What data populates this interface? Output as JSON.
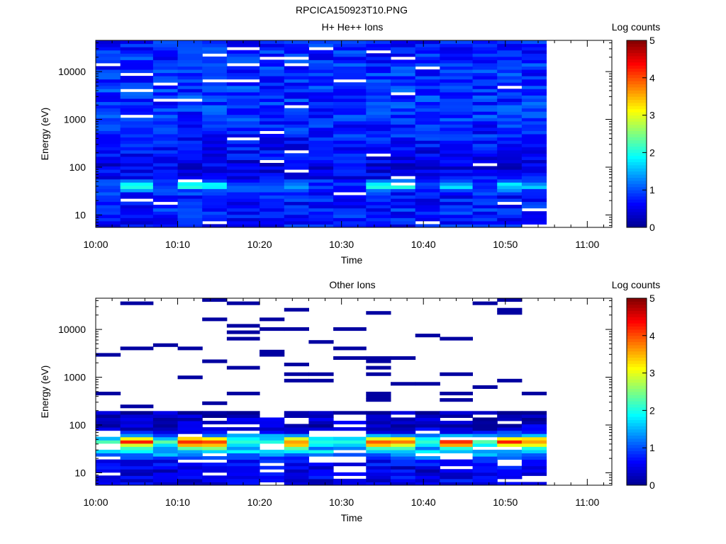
{
  "title": "RPCICA150923T10.PNG",
  "colors": {
    "jet": [
      "#00008f",
      "#0000ff",
      "#0080ff",
      "#00ffff",
      "#80ff80",
      "#ffff00",
      "#ff8000",
      "#ff0000",
      "#800000"
    ],
    "empty": "#ffffff",
    "frame": "#000000"
  },
  "chart_data": [
    {
      "type": "heatmap",
      "title": "H+ He++ Ions",
      "xlabel": "Time",
      "ylabel": "Energy (eV)",
      "x_ticks": [
        "10:00",
        "10:10",
        "10:20",
        "10:30",
        "10:40",
        "10:50",
        "11:00"
      ],
      "x_range": [
        "10:00",
        "11:03"
      ],
      "y_scale": "log",
      "y_ticks": [
        "10",
        "100",
        "1000",
        "10000"
      ],
      "y_range": [
        5.5,
        45000
      ],
      "time_bins": [
        "10:00",
        "10:03",
        "10:07",
        "10:10",
        "10:13",
        "10:16",
        "10:20",
        "10:23",
        "10:26",
        "10:29",
        "10:33",
        "10:36",
        "10:39",
        "10:42",
        "10:46",
        "10:49",
        "10:52"
      ],
      "data_end": "10:55",
      "colorbar": {
        "label": "Log counts",
        "min": 0,
        "max": 5,
        "ticks": [
          "0",
          "1",
          "2",
          "3",
          "4",
          "5"
        ]
      },
      "profile_log_counts": [
        {
          "energy": 8,
          "value": 0.7
        },
        {
          "energy": 12,
          "value": 0.75
        },
        {
          "energy": 20,
          "value": 0.7
        },
        {
          "energy": 30,
          "value": 0.8
        },
        {
          "energy": 40,
          "value": 1.9
        },
        {
          "energy": 60,
          "value": 0.6
        },
        {
          "energy": 100,
          "value": 0.5
        },
        {
          "energy": 300,
          "value": 0.65
        },
        {
          "energy": 1000,
          "value": 0.85
        },
        {
          "energy": 5000,
          "value": 0.85
        },
        {
          "energy": 20000,
          "value": 0.8
        },
        {
          "energy": 40000,
          "value": 0.75
        }
      ]
    },
    {
      "type": "heatmap",
      "title": "Other Ions",
      "xlabel": "Time",
      "ylabel": "Energy (eV)",
      "x_ticks": [
        "10:00",
        "10:10",
        "10:20",
        "10:30",
        "10:40",
        "10:50",
        "11:00"
      ],
      "x_range": [
        "10:00",
        "11:03"
      ],
      "y_scale": "log",
      "y_ticks": [
        "10",
        "100",
        "1000",
        "10000"
      ],
      "y_range": [
        5.5,
        45000
      ],
      "time_bins": [
        "10:00",
        "10:03",
        "10:07",
        "10:10",
        "10:13",
        "10:16",
        "10:20",
        "10:23",
        "10:26",
        "10:29",
        "10:33",
        "10:36",
        "10:39",
        "10:42",
        "10:46",
        "10:49",
        "10:52"
      ],
      "data_end": "10:55",
      "colorbar": {
        "label": "Log counts",
        "min": 0,
        "max": 5,
        "ticks": [
          "0",
          "1",
          "2",
          "3",
          "4",
          "5"
        ]
      },
      "profile_log_counts": [
        {
          "energy": 8,
          "value": 0.5
        },
        {
          "energy": 12,
          "value": 0.45
        },
        {
          "energy": 18,
          "value": 0.7
        },
        {
          "energy": 25,
          "value": 1.4
        },
        {
          "energy": 30,
          "value": 1.8
        },
        {
          "energy": 38,
          "value": 3.2
        },
        {
          "energy": 48,
          "value": 4.2
        },
        {
          "energy": 60,
          "value": 1.3
        },
        {
          "energy": 80,
          "value": 0.4
        },
        {
          "energy": 120,
          "value": 0.3
        },
        {
          "energy": 180,
          "value": 0.2
        },
        {
          "energy": 400,
          "value": 0.1
        },
        {
          "energy": 40000,
          "value": 0.1
        }
      ]
    }
  ]
}
